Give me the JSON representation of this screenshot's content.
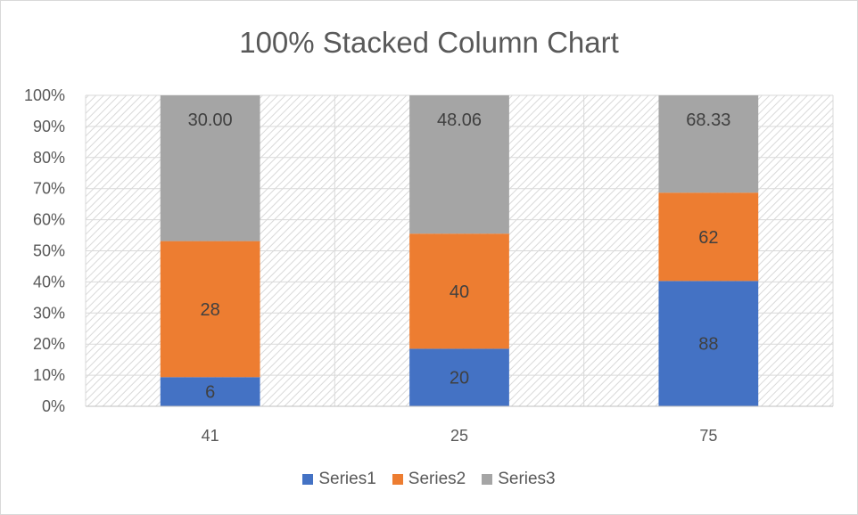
{
  "chart_data": {
    "type": "bar",
    "stacking": "percent",
    "title": "100% Stacked Column Chart",
    "categories": [
      "41",
      "25",
      "75"
    ],
    "series": [
      {
        "name": "Series1",
        "color": "#4472C4",
        "values": [
          6,
          20,
          88
        ],
        "labels": [
          "6",
          "20",
          "88"
        ]
      },
      {
        "name": "Series2",
        "color": "#ED7D31",
        "values": [
          28,
          40,
          62
        ],
        "labels": [
          "28",
          "40",
          "62"
        ]
      },
      {
        "name": "Series3",
        "color": "#A5A5A5",
        "values": [
          30.0,
          48.06,
          68.33
        ],
        "labels": [
          "30.00",
          "48.06",
          "68.33"
        ]
      }
    ],
    "yticks": [
      "0%",
      "10%",
      "20%",
      "30%",
      "40%",
      "50%",
      "60%",
      "70%",
      "80%",
      "90%",
      "100%"
    ],
    "ylim": [
      0,
      100
    ],
    "plot_area_pattern": "diagonal-hatch",
    "grid": true,
    "legend_position": "bottom"
  }
}
